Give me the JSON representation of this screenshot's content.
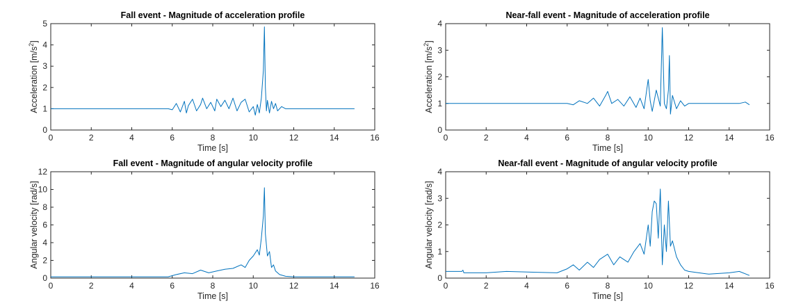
{
  "figure": {
    "background": "#ffffff",
    "line_color": "#0072BD"
  },
  "chart_data": [
    {
      "type": "line",
      "title": "Fall event - Magnitude of acceleration profile",
      "xlabel": "Time [s]",
      "ylabel": "Acceleration [m/s",
      "ylabel_sup": "2",
      "ylabel_close": "]",
      "xlim": [
        0,
        16
      ],
      "ylim": [
        0,
        5
      ],
      "xticks": [
        0,
        2,
        4,
        6,
        8,
        10,
        12,
        14,
        16
      ],
      "yticks": [
        0,
        1,
        2,
        3,
        4,
        5
      ],
      "series": [
        {
          "x": [
            0,
            5.8,
            6.0,
            6.2,
            6.4,
            6.6,
            6.7,
            6.8,
            7.0,
            7.2,
            7.4,
            7.5,
            7.7,
            7.9,
            8.1,
            8.2,
            8.4,
            8.6,
            8.8,
            9.0,
            9.2,
            9.4,
            9.6,
            9.8,
            10.0,
            10.1,
            10.2,
            10.3,
            10.4,
            10.5,
            10.55,
            10.6,
            10.65,
            10.7,
            10.8,
            10.9,
            11.0,
            11.1,
            11.2,
            11.4,
            11.6,
            12.0,
            15.0
          ],
          "y": [
            1.0,
            1.0,
            0.95,
            1.25,
            0.85,
            1.35,
            0.8,
            1.15,
            1.45,
            0.9,
            1.2,
            1.5,
            1.0,
            1.3,
            0.9,
            1.45,
            1.1,
            1.4,
            1.0,
            1.5,
            0.9,
            1.3,
            1.45,
            0.85,
            1.1,
            0.7,
            1.2,
            0.8,
            1.5,
            2.8,
            4.85,
            2.0,
            0.9,
            1.4,
            0.8,
            1.35,
            1.0,
            1.25,
            0.9,
            1.1,
            1.0,
            1.0,
            1.0
          ]
        }
      ]
    },
    {
      "type": "line",
      "title": "Near-fall event - Magnitude of acceleration profile",
      "xlabel": "Time [s]",
      "ylabel": "Acceleration [m/s",
      "ylabel_sup": "2",
      "ylabel_close": "]",
      "xlim": [
        0,
        16
      ],
      "ylim": [
        0,
        4
      ],
      "xticks": [
        0,
        2,
        4,
        6,
        8,
        10,
        12,
        14,
        16
      ],
      "yticks": [
        0,
        1,
        2,
        3,
        4
      ],
      "series": [
        {
          "x": [
            0,
            6.0,
            6.3,
            6.6,
            7.0,
            7.3,
            7.6,
            7.9,
            8.0,
            8.2,
            8.5,
            8.8,
            9.1,
            9.4,
            9.6,
            9.8,
            9.9,
            10.0,
            10.1,
            10.2,
            10.4,
            10.6,
            10.7,
            10.8,
            10.9,
            11.0,
            11.05,
            11.1,
            11.2,
            11.4,
            11.6,
            11.8,
            12.0,
            14.5,
            14.8,
            15.0
          ],
          "y": [
            1.0,
            1.0,
            0.95,
            1.1,
            1.0,
            1.2,
            0.9,
            1.3,
            1.45,
            1.0,
            1.15,
            0.9,
            1.25,
            0.85,
            1.2,
            0.8,
            1.35,
            1.9,
            1.1,
            0.7,
            1.5,
            0.9,
            3.85,
            1.0,
            0.8,
            1.5,
            2.8,
            0.6,
            1.3,
            0.8,
            1.1,
            0.9,
            1.0,
            1.0,
            1.05,
            0.95
          ]
        }
      ]
    },
    {
      "type": "line",
      "title": "Fall event - Magnitude of angular velocity profile",
      "xlabel": "Time [s]",
      "ylabel": "Angular velocity [rad/s]",
      "xlim": [
        0,
        16
      ],
      "ylim": [
        0,
        12
      ],
      "xticks": [
        0,
        2,
        4,
        6,
        8,
        10,
        12,
        14,
        16
      ],
      "yticks": [
        0,
        2,
        4,
        6,
        8,
        10,
        12
      ],
      "series": [
        {
          "x": [
            0,
            5.8,
            6.2,
            6.6,
            7.0,
            7.4,
            7.8,
            8.2,
            8.6,
            9.0,
            9.4,
            9.6,
            9.8,
            10.0,
            10.2,
            10.3,
            10.4,
            10.5,
            10.55,
            10.6,
            10.7,
            10.8,
            10.9,
            11.0,
            11.1,
            11.3,
            11.6,
            12.0,
            15.0
          ],
          "y": [
            0.15,
            0.15,
            0.4,
            0.6,
            0.5,
            0.9,
            0.6,
            0.8,
            1.0,
            1.1,
            1.5,
            1.2,
            2.0,
            2.5,
            3.2,
            2.6,
            4.5,
            7.0,
            10.2,
            5.0,
            2.5,
            3.0,
            1.2,
            1.5,
            0.8,
            0.4,
            0.2,
            0.15,
            0.15
          ]
        }
      ]
    },
    {
      "type": "line",
      "title": "Near-fall event - Magnitude of angular velocity profile",
      "xlabel": "Time [s]",
      "ylabel": "Angular velocity [rad/s]",
      "xlim": [
        0,
        16
      ],
      "ylim": [
        0,
        4
      ],
      "xticks": [
        0,
        2,
        4,
        6,
        8,
        10,
        12,
        14,
        16
      ],
      "yticks": [
        0,
        1,
        2,
        3,
        4
      ],
      "series": [
        {
          "x": [
            0,
            0.8,
            0.85,
            0.9,
            2.0,
            3.0,
            5.5,
            6.0,
            6.3,
            6.6,
            7.0,
            7.3,
            7.6,
            8.0,
            8.3,
            8.6,
            9.0,
            9.3,
            9.6,
            9.8,
            10.0,
            10.1,
            10.2,
            10.3,
            10.4,
            10.5,
            10.6,
            10.7,
            10.8,
            10.9,
            11.0,
            11.1,
            11.2,
            11.4,
            11.6,
            11.8,
            12.0,
            12.5,
            13.0,
            14.0,
            14.5,
            15.0
          ],
          "y": [
            0.25,
            0.25,
            0.3,
            0.2,
            0.2,
            0.25,
            0.2,
            0.35,
            0.5,
            0.3,
            0.6,
            0.4,
            0.7,
            0.9,
            0.5,
            0.8,
            0.6,
            1.0,
            1.3,
            0.9,
            2.0,
            1.2,
            2.5,
            2.9,
            2.8,
            1.5,
            3.35,
            0.5,
            2.0,
            1.0,
            2.9,
            1.2,
            1.4,
            0.8,
            0.5,
            0.3,
            0.25,
            0.2,
            0.15,
            0.2,
            0.25,
            0.1
          ]
        }
      ]
    }
  ]
}
